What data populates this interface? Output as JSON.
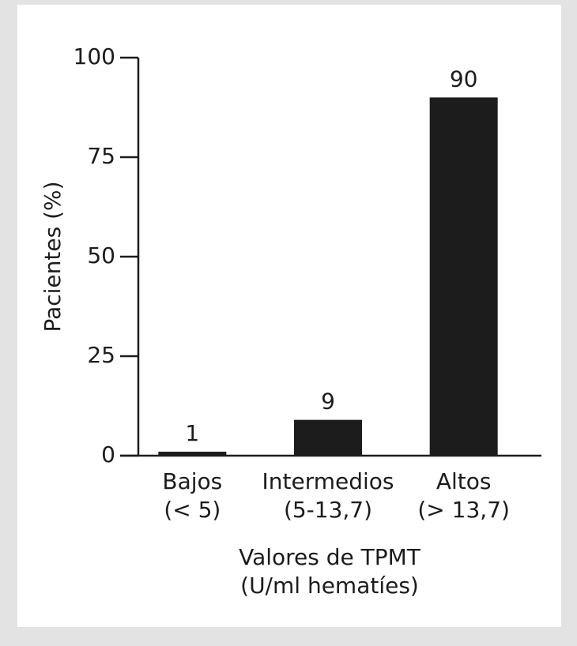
{
  "chart_data": {
    "type": "bar",
    "categories": [
      [
        "Bajos",
        "(< 5)"
      ],
      [
        "Intermedios",
        "(5-13,7)"
      ],
      [
        "Altos",
        "(> 13,7)"
      ]
    ],
    "values": [
      1,
      9,
      90
    ],
    "color": "#1c1c1c",
    "y_label": "Pacientes (%)",
    "x_label": [
      "Valores de TPMT",
      "(U/ml hematíes)"
    ],
    "ylim": [
      0,
      100
    ],
    "yticks": [
      0,
      25,
      50,
      75,
      100
    ]
  }
}
